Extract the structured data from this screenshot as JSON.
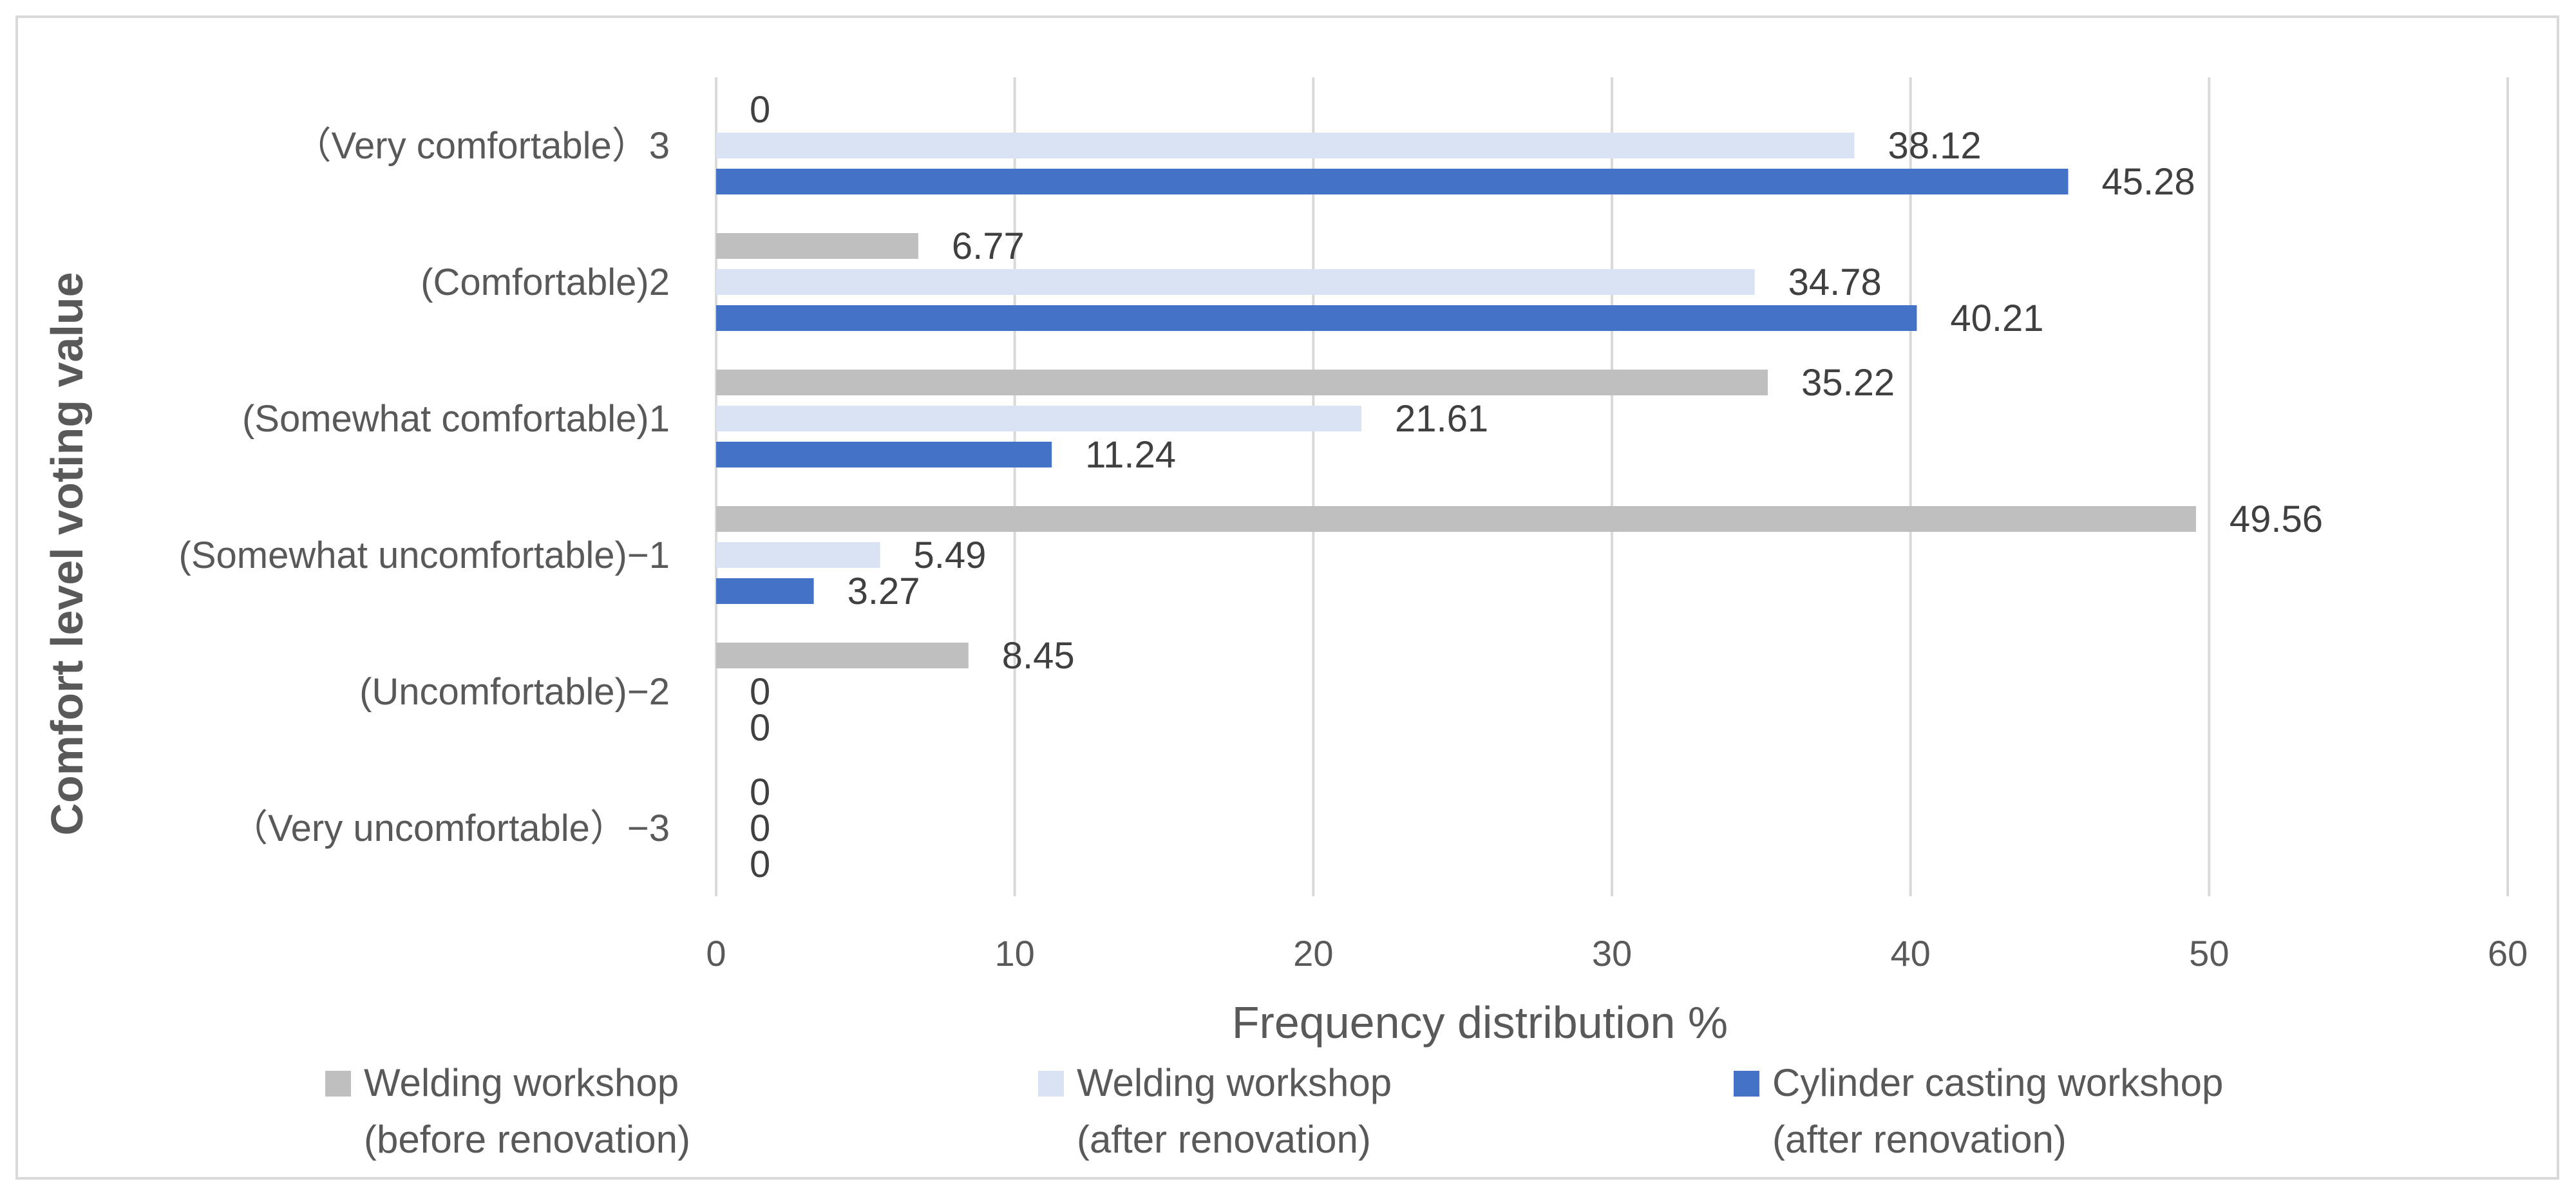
{
  "chart_data": {
    "type": "bar",
    "orientation": "horizontal",
    "title": "",
    "xlabel": "Frequency distribution %",
    "ylabel": "Comfort level voting value",
    "xlim": [
      0,
      60
    ],
    "xticks": [
      "0",
      "10",
      "20",
      "30",
      "40",
      "50",
      "60"
    ],
    "categories": [
      "（Very comfortable）3",
      "(Comfortable)2",
      "(Somewhat comfortable)1",
      "(Somewhat uncomfortable)−1",
      "(Uncomfortable)−2",
      "（Very uncomfortable）−3"
    ],
    "series": [
      {
        "name": "Welding workshop (before renovation)",
        "legend_lines": [
          "Welding workshop",
          "(before renovation)"
        ],
        "color": "#bfbfbf",
        "values": [
          0,
          6.77,
          35.22,
          49.56,
          8.45,
          0
        ]
      },
      {
        "name": "Welding workshop (after renovation)",
        "legend_lines": [
          "Welding workshop",
          "(after renovation)"
        ],
        "color": "#dae3f3",
        "values": [
          38.12,
          34.78,
          21.61,
          5.49,
          0,
          0
        ]
      },
      {
        "name": "Cylinder casting workshop (after renovation)",
        "legend_lines": [
          "Cylinder casting workshop",
          "(after renovation)"
        ],
        "color": "#4472c4",
        "values": [
          45.28,
          40.21,
          11.24,
          3.27,
          0,
          0
        ]
      }
    ],
    "data_labels": [
      [
        "0",
        "6.77",
        "35.22",
        "49.56",
        "8.45",
        "0"
      ],
      [
        "38.12",
        "34.78",
        "21.61",
        "5.49",
        "0",
        "0"
      ],
      [
        "45.28",
        "40.21",
        "11.24",
        "3.27",
        "0",
        "0"
      ]
    ],
    "grid": true,
    "legend_position": "bottom"
  }
}
